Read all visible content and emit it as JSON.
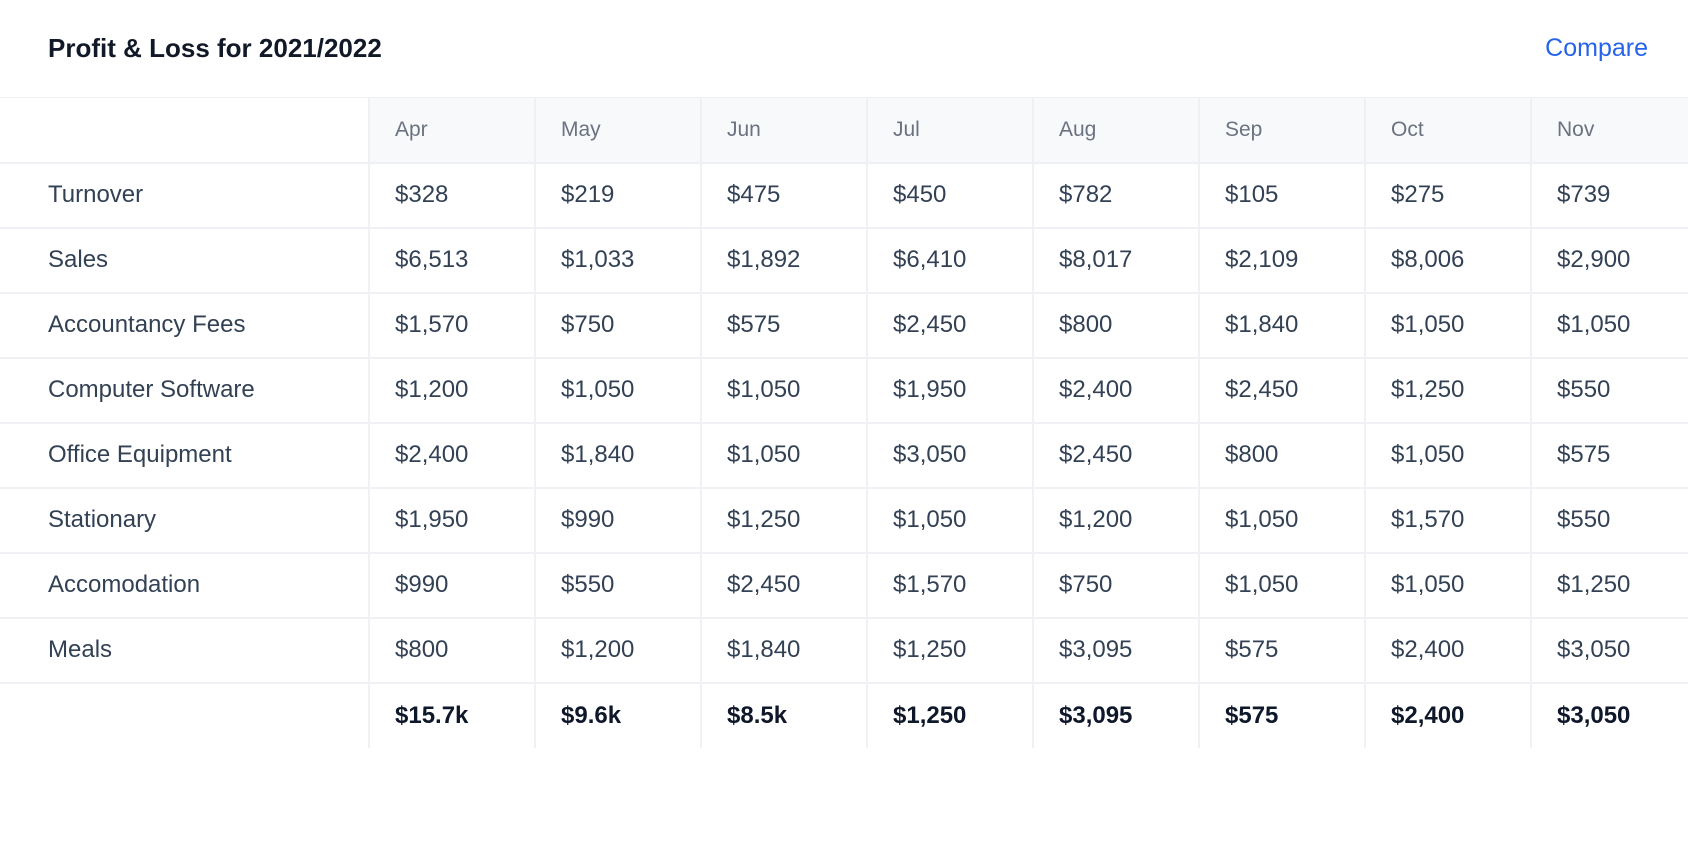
{
  "header": {
    "title": "Profit & Loss for 2021/2022",
    "compare_label": "Compare"
  },
  "colors": {
    "accent": "#2563eb",
    "header_bg": "#f8f9fb"
  },
  "table": {
    "columns": [
      "Apr",
      "May",
      "Jun",
      "Jul",
      "Aug",
      "Sep",
      "Oct",
      "Nov"
    ],
    "rows": [
      {
        "label": "Turnover",
        "values": [
          "$328",
          "$219",
          "$475",
          "$450",
          "$782",
          "$105",
          "$275",
          "$739"
        ]
      },
      {
        "label": "Sales",
        "values": [
          "$6,513",
          "$1,033",
          "$1,892",
          "$6,410",
          "$8,017",
          "$2,109",
          "$8,006",
          "$2,900"
        ]
      },
      {
        "label": "Accountancy Fees",
        "values": [
          "$1,570",
          "$750",
          "$575",
          "$2,450",
          "$800",
          "$1,840",
          "$1,050",
          "$1,050"
        ]
      },
      {
        "label": "Computer Software",
        "values": [
          "$1,200",
          "$1,050",
          "$1,050",
          "$1,950",
          "$2,400",
          "$2,450",
          "$1,250",
          "$550"
        ]
      },
      {
        "label": "Office Equipment",
        "values": [
          "$2,400",
          "$1,840",
          "$1,050",
          "$3,050",
          "$2,450",
          "$800",
          "$1,050",
          "$575"
        ]
      },
      {
        "label": "Stationary",
        "values": [
          "$1,950",
          "$990",
          "$1,250",
          "$1,050",
          "$1,200",
          "$1,050",
          "$1,570",
          "$550"
        ]
      },
      {
        "label": "Accomodation",
        "values": [
          "$990",
          "$550",
          "$2,450",
          "$1,570",
          "$750",
          "$1,050",
          "$1,050",
          "$1,250"
        ]
      },
      {
        "label": "Meals",
        "values": [
          "$800",
          "$1,200",
          "$1,840",
          "$1,250",
          "$3,095",
          "$575",
          "$2,400",
          "$3,050"
        ]
      }
    ],
    "totals": [
      "$15.7k",
      "$9.6k",
      "$8.5k",
      "$1,250",
      "$3,095",
      "$575",
      "$2,400",
      "$3,050"
    ]
  }
}
